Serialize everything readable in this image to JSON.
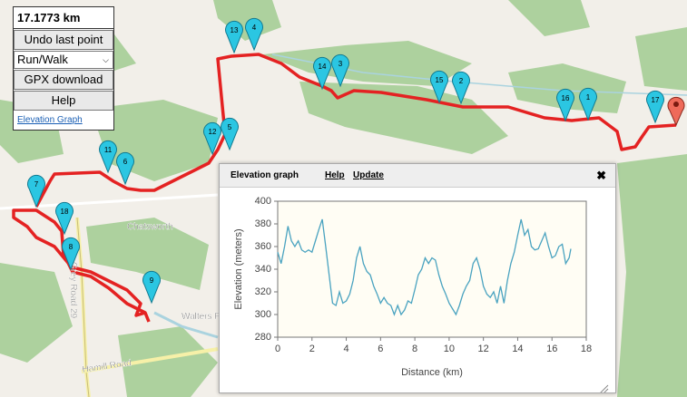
{
  "controls": {
    "distance": "17.1773 km",
    "undo": "Undo last point",
    "mode": "Run/Walk",
    "gpx": "GPX download",
    "help": "Help",
    "elevation_link": "Elevation Graph"
  },
  "map": {
    "labels": [
      "Chatsworth",
      "Walters Fa",
      "Grey Road 29",
      "Hamill Road"
    ],
    "markers": [
      "13",
      "4",
      "14",
      "3",
      "15",
      "2",
      "16",
      "1",
      "17",
      "12",
      "5",
      "11",
      "6",
      "7",
      "18",
      "8",
      "9"
    ]
  },
  "popup": {
    "title": "Elevation graph",
    "help": "Help",
    "update": "Update"
  },
  "chart_data": {
    "type": "line",
    "xlabel": "Distance (km)",
    "ylabel": "Elevation (meters)",
    "xlim": [
      0,
      18
    ],
    "xticks": [
      0,
      2,
      4,
      6,
      8,
      10,
      12,
      14,
      16,
      18
    ],
    "ylim": [
      280,
      400
    ],
    "yticks": [
      280,
      300,
      320,
      340,
      360,
      380,
      400
    ],
    "grid": false,
    "series": [
      {
        "color": "#4aa3c0",
        "x": [
          0,
          0.2,
          0.4,
          0.6,
          0.8,
          1.0,
          1.2,
          1.4,
          1.6,
          1.8,
          2.0,
          2.2,
          2.4,
          2.6,
          2.8,
          3.0,
          3.2,
          3.4,
          3.6,
          3.8,
          4.0,
          4.2,
          4.4,
          4.6,
          4.8,
          5.0,
          5.2,
          5.4,
          5.6,
          5.8,
          6.0,
          6.2,
          6.4,
          6.6,
          6.8,
          7.0,
          7.2,
          7.4,
          7.6,
          7.8,
          8.0,
          8.2,
          8.4,
          8.6,
          8.8,
          9.0,
          9.2,
          9.4,
          9.6,
          9.8,
          10.0,
          10.2,
          10.4,
          10.6,
          10.8,
          11.0,
          11.2,
          11.4,
          11.6,
          11.8,
          12.0,
          12.2,
          12.4,
          12.6,
          12.8,
          13.0,
          13.2,
          13.4,
          13.6,
          13.8,
          14.0,
          14.2,
          14.4,
          14.6,
          14.8,
          15.0,
          15.2,
          15.4,
          15.6,
          15.8,
          16.0,
          16.2,
          16.4,
          16.6,
          16.8,
          17.0,
          17.1
        ],
        "values": [
          355,
          345,
          360,
          378,
          365,
          360,
          365,
          357,
          355,
          357,
          355,
          365,
          375,
          384,
          360,
          335,
          310,
          308,
          320,
          310,
          312,
          318,
          330,
          350,
          360,
          345,
          338,
          335,
          325,
          318,
          310,
          315,
          310,
          308,
          300,
          308,
          300,
          304,
          312,
          310,
          322,
          335,
          340,
          350,
          345,
          350,
          348,
          335,
          325,
          318,
          310,
          305,
          300,
          308,
          318,
          325,
          330,
          345,
          350,
          340,
          325,
          318,
          315,
          320,
          310,
          325,
          310,
          330,
          345,
          355,
          370,
          384,
          370,
          375,
          360,
          357,
          358,
          365,
          372,
          360,
          350,
          352,
          360,
          362,
          345,
          350,
          358
        ]
      }
    ]
  }
}
